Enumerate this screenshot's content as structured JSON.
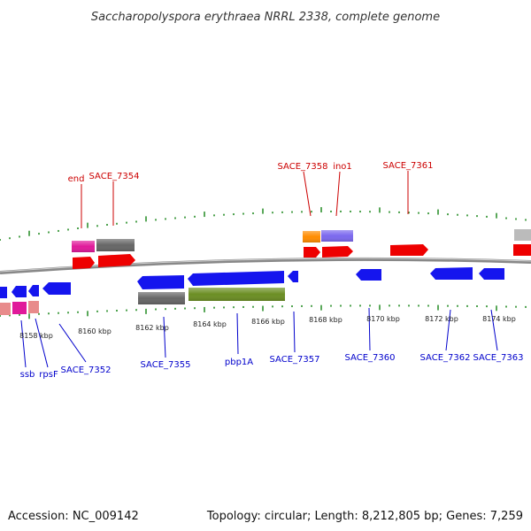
{
  "title": "Saccharopolyspora erythraea NRRL 2338, complete genome",
  "footer": {
    "accession": "Accession: NC_009142",
    "summary": "Topology: circular; Length: 8,212,805 bp; Genes: 7,259"
  },
  "colors": {
    "forward_label": "#cc0000",
    "reverse_label": "#0000cc",
    "tick_mark": "#228b22",
    "backbone": "#888888"
  },
  "scale_labels": [
    "8158 kbp",
    "8160 kbp",
    "8162 kbp",
    "8164 kbp",
    "8166 kbp",
    "8168 kbp",
    "8170 kbp",
    "8172 kbp",
    "8174 kbp"
  ],
  "forward_labels": [
    "end",
    "SACE_7354",
    "SACE_7358",
    "ino1",
    "SACE_7361"
  ],
  "reverse_labels": [
    "ssb",
    "rpsF",
    "SACE_7352",
    "SACE_7355",
    "pbp1A",
    "SACE_7357",
    "SACE_7360",
    "SACE_7362",
    "SACE_7363"
  ]
}
